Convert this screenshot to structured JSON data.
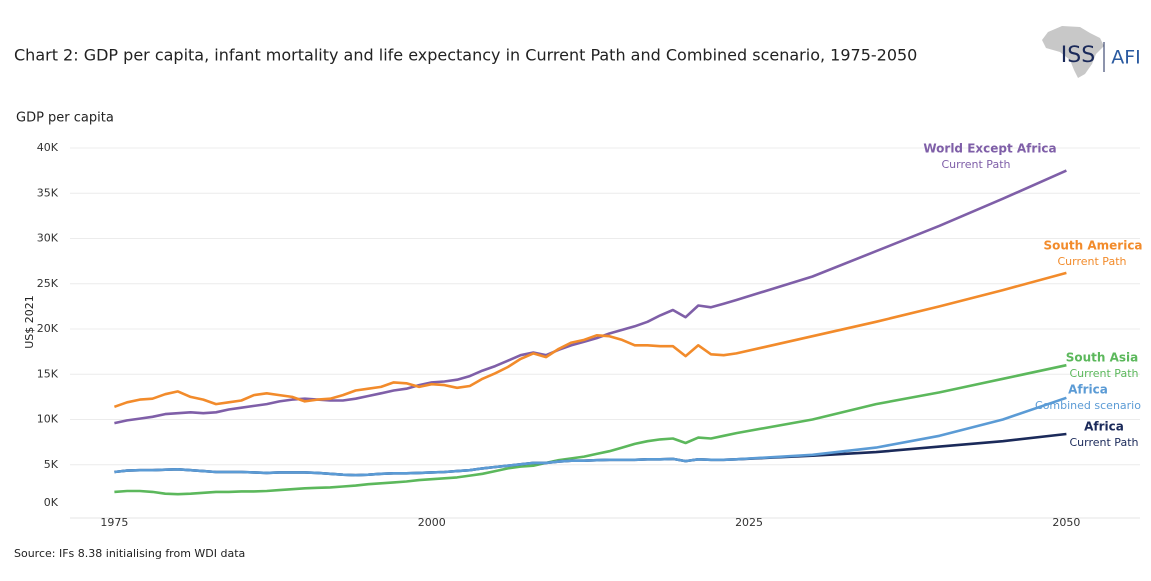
{
  "chart_data": {
    "type": "line",
    "title": "Chart 2: GDP per capita, infant mortality and life expectancy in Current Path and Combined scenario, 1975-2050",
    "subtitle": "GDP per capita",
    "y_label": "US$ 2021",
    "source": "Source: IFs 8.38 initialising from WDI data",
    "logo": {
      "left": "ISS",
      "right": "AFI"
    },
    "x": [
      1975,
      1976,
      1977,
      1978,
      1979,
      1980,
      1981,
      1982,
      1983,
      1984,
      1985,
      1986,
      1987,
      1988,
      1989,
      1990,
      1991,
      1992,
      1993,
      1994,
      1995,
      1996,
      1997,
      1998,
      1999,
      2000,
      2001,
      2002,
      2003,
      2004,
      2005,
      2006,
      2007,
      2008,
      2009,
      2010,
      2011,
      2012,
      2013,
      2014,
      2015,
      2016,
      2017,
      2018,
      2019,
      2020,
      2021,
      2022,
      2023,
      2024,
      2030,
      2035,
      2040,
      2045,
      2050
    ],
    "xlim": [
      1971.5,
      2055.8
    ],
    "xticks": [
      1975,
      2000,
      2025,
      2050
    ],
    "ylim": [
      0,
      40000
    ],
    "yticks": [
      {
        "value": 0,
        "label": "0K"
      },
      {
        "value": 5000,
        "label": "5K"
      },
      {
        "value": 10000,
        "label": "10K"
      },
      {
        "value": 15000,
        "label": "15K"
      },
      {
        "value": 20000,
        "label": "20K"
      },
      {
        "value": 25000,
        "label": "25K"
      },
      {
        "value": 30000,
        "label": "30K"
      },
      {
        "value": 35000,
        "label": "35K"
      },
      {
        "value": 40000,
        "label": "40K"
      }
    ],
    "grid": true,
    "series": [
      {
        "name": "World Except Africa",
        "scenario": "Current Path",
        "color": "#7f5fa8",
        "values": [
          9600,
          9900,
          10100,
          10300,
          10600,
          10700,
          10800,
          10700,
          10800,
          11100,
          11300,
          11500,
          11700,
          12000,
          12200,
          12300,
          12200,
          12100,
          12100,
          12300,
          12600,
          12900,
          13200,
          13400,
          13800,
          14100,
          14200,
          14400,
          14800,
          15400,
          15900,
          16500,
          17100,
          17400,
          17100,
          17700,
          18200,
          18600,
          19000,
          19500,
          19900,
          20300,
          20800,
          21500,
          22100,
          21300,
          22600,
          22400,
          22800,
          23200,
          25800,
          28600,
          31400,
          34400,
          37500
        ]
      },
      {
        "name": "South America",
        "scenario": "Current Path",
        "color": "#f28b2b",
        "values": [
          11400,
          11900,
          12200,
          12300,
          12800,
          13100,
          12500,
          12200,
          11700,
          11900,
          12100,
          12700,
          12900,
          12700,
          12500,
          12000,
          12200,
          12300,
          12700,
          13200,
          13400,
          13600,
          14100,
          14000,
          13600,
          13900,
          13800,
          13500,
          13700,
          14500,
          15100,
          15800,
          16700,
          17300,
          16900,
          17800,
          18500,
          18800,
          19300,
          19200,
          18800,
          18200,
          18200,
          18100,
          18100,
          17000,
          18200,
          17200,
          17100,
          17300,
          19200,
          20800,
          22500,
          24300,
          26200
        ]
      },
      {
        "name": "South Asia",
        "scenario": "Current Path",
        "color": "#5cb85c",
        "values": [
          2000,
          2100,
          2100,
          2000,
          1800,
          1750,
          1800,
          1900,
          2000,
          2000,
          2050,
          2050,
          2100,
          2200,
          2300,
          2400,
          2450,
          2500,
          2600,
          2700,
          2850,
          2950,
          3050,
          3150,
          3300,
          3400,
          3500,
          3600,
          3800,
          4000,
          4300,
          4600,
          4800,
          4900,
          5200,
          5500,
          5700,
          5900,
          6200,
          6500,
          6900,
          7300,
          7600,
          7800,
          7900,
          7400,
          8000,
          7900,
          8200,
          8500,
          10000,
          11700,
          13000,
          14500,
          16000
        ]
      },
      {
        "name": "Africa",
        "scenario": "Current Path",
        "color": "#1b2a5a",
        "values": [
          4200,
          4350,
          4400,
          4400,
          4450,
          4500,
          4400,
          4300,
          4200,
          4200,
          4200,
          4150,
          4100,
          4150,
          4150,
          4150,
          4100,
          4000,
          3900,
          3850,
          3900,
          4000,
          4050,
          4050,
          4100,
          4150,
          4200,
          4300,
          4400,
          4600,
          4750,
          4900,
          5050,
          5200,
          5200,
          5350,
          5450,
          5450,
          5500,
          5550,
          5550,
          5550,
          5600,
          5600,
          5650,
          5400,
          5600,
          5550,
          5550,
          5600,
          6000,
          6400,
          7000,
          7600,
          8400
        ]
      },
      {
        "name": "Africa",
        "scenario": "Combined scenario",
        "color": "#5b9bd5",
        "values": [
          4200,
          4350,
          4400,
          4400,
          4450,
          4500,
          4400,
          4300,
          4200,
          4200,
          4200,
          4150,
          4100,
          4150,
          4150,
          4150,
          4100,
          4000,
          3900,
          3850,
          3900,
          4000,
          4050,
          4050,
          4100,
          4150,
          4200,
          4300,
          4400,
          4600,
          4750,
          4900,
          5050,
          5200,
          5200,
          5350,
          5450,
          5450,
          5500,
          5550,
          5550,
          5550,
          5600,
          5600,
          5650,
          5400,
          5600,
          5550,
          5550,
          5600,
          6100,
          6900,
          8200,
          10000,
          12400
        ]
      }
    ]
  }
}
